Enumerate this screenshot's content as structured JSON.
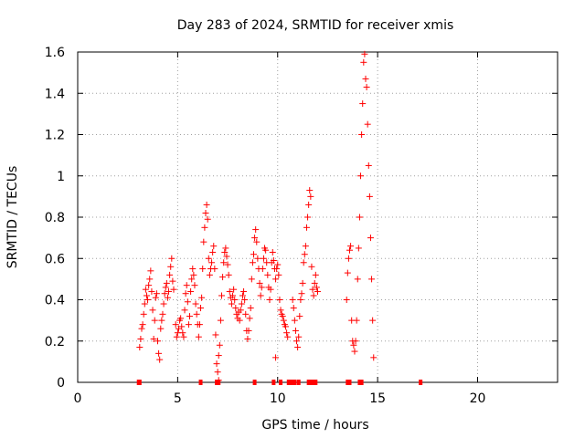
{
  "chart_data": {
    "type": "scatter",
    "title": "Day 283 of 2024, SRMTID for receiver xmis",
    "xlabel": "GPS time / hours",
    "ylabel": "SRMTID / TECUs",
    "xlim": [
      0,
      24
    ],
    "ylim": [
      0,
      1.6
    ],
    "xticks": [
      0,
      5,
      10,
      15,
      20
    ],
    "xtick_labels": [
      "0",
      "5",
      "10",
      "15",
      "20"
    ],
    "yticks": [
      0,
      0.2,
      0.4,
      0.6,
      0.8,
      1.0,
      1.2,
      1.4,
      1.6
    ],
    "ytick_labels": [
      "0",
      "0.2",
      "0.4",
      "0.6",
      "0.8",
      "1",
      "1.2",
      "1.4",
      "1.6"
    ],
    "grid": true,
    "marker": "+",
    "color": "#ff0000",
    "series": [
      {
        "name": "SRMTID",
        "points": [
          [
            3.1,
            0.17
          ],
          [
            3.15,
            0.21
          ],
          [
            3.2,
            0.26
          ],
          [
            3.25,
            0.28
          ],
          [
            3.3,
            0.33
          ],
          [
            3.35,
            0.38
          ],
          [
            3.4,
            0.45
          ],
          [
            3.45,
            0.42
          ],
          [
            3.5,
            0.4
          ],
          [
            3.55,
            0.47
          ],
          [
            3.6,
            0.5
          ],
          [
            3.65,
            0.54
          ],
          [
            3.7,
            0.44
          ],
          [
            3.75,
            0.35
          ],
          [
            3.8,
            0.21
          ],
          [
            3.85,
            0.3
          ],
          [
            3.9,
            0.41
          ],
          [
            3.95,
            0.43
          ],
          [
            4.0,
            0.2
          ],
          [
            4.05,
            0.14
          ],
          [
            4.1,
            0.11
          ],
          [
            4.15,
            0.26
          ],
          [
            4.2,
            0.3
          ],
          [
            4.25,
            0.33
          ],
          [
            4.3,
            0.38
          ],
          [
            4.35,
            0.43
          ],
          [
            4.4,
            0.46
          ],
          [
            4.45,
            0.48
          ],
          [
            4.5,
            0.41
          ],
          [
            4.55,
            0.44
          ],
          [
            4.6,
            0.52
          ],
          [
            4.65,
            0.56
          ],
          [
            4.7,
            0.6
          ],
          [
            4.75,
            0.49
          ],
          [
            4.8,
            0.45
          ],
          [
            4.9,
            0.28
          ],
          [
            4.95,
            0.22
          ],
          [
            5.0,
            0.24
          ],
          [
            5.05,
            0.26
          ],
          [
            5.1,
            0.3
          ],
          [
            5.15,
            0.31
          ],
          [
            5.2,
            0.27
          ],
          [
            5.25,
            0.24
          ],
          [
            5.3,
            0.22
          ],
          [
            5.35,
            0.35
          ],
          [
            5.4,
            0.43
          ],
          [
            5.45,
            0.47
          ],
          [
            5.5,
            0.39
          ],
          [
            5.55,
            0.28
          ],
          [
            5.6,
            0.32
          ],
          [
            5.65,
            0.44
          ],
          [
            5.7,
            0.5
          ],
          [
            5.75,
            0.55
          ],
          [
            5.8,
            0.52
          ],
          [
            5.85,
            0.47
          ],
          [
            5.9,
            0.38
          ],
          [
            5.95,
            0.33
          ],
          [
            6.0,
            0.28
          ],
          [
            6.05,
            0.22
          ],
          [
            6.1,
            0.28
          ],
          [
            6.15,
            0.36
          ],
          [
            6.2,
            0.41
          ],
          [
            6.25,
            0.55
          ],
          [
            6.3,
            0.68
          ],
          [
            6.35,
            0.75
          ],
          [
            6.4,
            0.82
          ],
          [
            6.45,
            0.86
          ],
          [
            6.5,
            0.79
          ],
          [
            6.55,
            0.6
          ],
          [
            6.6,
            0.52
          ],
          [
            6.65,
            0.55
          ],
          [
            6.7,
            0.58
          ],
          [
            6.75,
            0.63
          ],
          [
            6.8,
            0.66
          ],
          [
            6.85,
            0.55
          ],
          [
            6.9,
            0.23
          ],
          [
            6.95,
            0.09
          ],
          [
            7.0,
            0.05
          ],
          [
            7.05,
            0.13
          ],
          [
            7.1,
            0.18
          ],
          [
            7.15,
            0.3
          ],
          [
            7.2,
            0.42
          ],
          [
            7.25,
            0.51
          ],
          [
            7.3,
            0.58
          ],
          [
            7.35,
            0.63
          ],
          [
            7.4,
            0.65
          ],
          [
            7.45,
            0.61
          ],
          [
            7.5,
            0.57
          ],
          [
            7.55,
            0.52
          ],
          [
            7.6,
            0.44
          ],
          [
            7.65,
            0.41
          ],
          [
            7.7,
            0.38
          ],
          [
            7.75,
            0.42
          ],
          [
            7.8,
            0.45
          ],
          [
            7.85,
            0.4
          ],
          [
            7.9,
            0.36
          ],
          [
            7.95,
            0.33
          ],
          [
            8.0,
            0.31
          ],
          [
            8.05,
            0.34
          ],
          [
            8.1,
            0.3
          ],
          [
            8.15,
            0.35
          ],
          [
            8.2,
            0.38
          ],
          [
            8.25,
            0.42
          ],
          [
            8.3,
            0.44
          ],
          [
            8.35,
            0.4
          ],
          [
            8.4,
            0.33
          ],
          [
            8.45,
            0.25
          ],
          [
            8.5,
            0.21
          ],
          [
            8.55,
            0.25
          ],
          [
            8.6,
            0.31
          ],
          [
            8.65,
            0.36
          ],
          [
            8.7,
            0.5
          ],
          [
            8.75,
            0.58
          ],
          [
            8.8,
            0.62
          ],
          [
            8.85,
            0.7
          ],
          [
            8.9,
            0.74
          ],
          [
            8.95,
            0.68
          ],
          [
            9.0,
            0.6
          ],
          [
            9.05,
            0.55
          ],
          [
            9.1,
            0.48
          ],
          [
            9.15,
            0.42
          ],
          [
            9.2,
            0.46
          ],
          [
            9.25,
            0.55
          ],
          [
            9.3,
            0.6
          ],
          [
            9.35,
            0.65
          ],
          [
            9.4,
            0.64
          ],
          [
            9.45,
            0.58
          ],
          [
            9.5,
            0.52
          ],
          [
            9.55,
            0.46
          ],
          [
            9.6,
            0.4
          ],
          [
            9.65,
            0.45
          ],
          [
            9.7,
            0.58
          ],
          [
            9.75,
            0.63
          ],
          [
            9.8,
            0.59
          ],
          [
            9.85,
            0.55
          ],
          [
            9.9,
            0.5
          ],
          [
            9.95,
            0.55
          ],
          [
            10.0,
            0.57
          ],
          [
            10.05,
            0.52
          ],
          [
            10.1,
            0.4
          ],
          [
            10.15,
            0.35
          ],
          [
            10.2,
            0.33
          ],
          [
            10.25,
            0.32
          ],
          [
            10.3,
            0.3
          ],
          [
            10.35,
            0.28
          ],
          [
            10.4,
            0.27
          ],
          [
            10.45,
            0.24
          ],
          [
            10.5,
            0.22
          ],
          [
            10.75,
            0.4
          ],
          [
            10.8,
            0.36
          ],
          [
            10.85,
            0.3
          ],
          [
            10.9,
            0.25
          ],
          [
            10.95,
            0.2
          ],
          [
            11.0,
            0.17
          ],
          [
            11.05,
            0.22
          ],
          [
            11.1,
            0.32
          ],
          [
            11.15,
            0.4
          ],
          [
            11.2,
            0.43
          ],
          [
            11.25,
            0.48
          ],
          [
            11.3,
            0.58
          ],
          [
            11.35,
            0.62
          ],
          [
            11.4,
            0.66
          ],
          [
            11.45,
            0.75
          ],
          [
            11.5,
            0.8
          ],
          [
            11.55,
            0.86
          ],
          [
            11.6,
            0.93
          ],
          [
            11.65,
            0.9
          ],
          [
            11.7,
            0.56
          ],
          [
            11.75,
            0.45
          ],
          [
            11.8,
            0.42
          ],
          [
            11.85,
            0.48
          ],
          [
            11.9,
            0.52
          ],
          [
            11.95,
            0.46
          ],
          [
            12.0,
            0.44
          ],
          [
            13.45,
            0.4
          ],
          [
            13.5,
            0.53
          ],
          [
            13.55,
            0.6
          ],
          [
            13.6,
            0.64
          ],
          [
            13.65,
            0.66
          ],
          [
            13.7,
            0.3
          ],
          [
            13.75,
            0.2
          ],
          [
            13.8,
            0.18
          ],
          [
            13.85,
            0.15
          ],
          [
            13.9,
            0.2
          ],
          [
            13.95,
            0.3
          ],
          [
            14.0,
            0.5
          ],
          [
            14.05,
            0.65
          ],
          [
            14.1,
            0.8
          ],
          [
            14.15,
            1.0
          ],
          [
            14.2,
            1.2
          ],
          [
            14.25,
            1.35
          ],
          [
            14.3,
            1.55
          ],
          [
            14.35,
            1.59
          ],
          [
            14.4,
            1.47
          ],
          [
            14.45,
            1.43
          ],
          [
            14.5,
            1.25
          ],
          [
            14.55,
            1.05
          ],
          [
            14.6,
            0.9
          ],
          [
            14.65,
            0.7
          ],
          [
            14.7,
            0.5
          ],
          [
            14.75,
            0.3
          ],
          [
            14.8,
            0.12
          ],
          [
            9.9,
            0.12
          ],
          [
            7.05,
            0.01
          ]
        ],
        "zero_points": [
          3.05,
          3.1,
          6.15,
          6.95,
          7.05,
          8.85,
          9.8,
          10.15,
          10.55,
          10.7,
          10.85,
          11.05,
          11.55,
          11.7,
          11.8,
          11.9,
          13.5,
          13.6,
          14.1,
          14.2,
          17.15
        ]
      }
    ]
  }
}
